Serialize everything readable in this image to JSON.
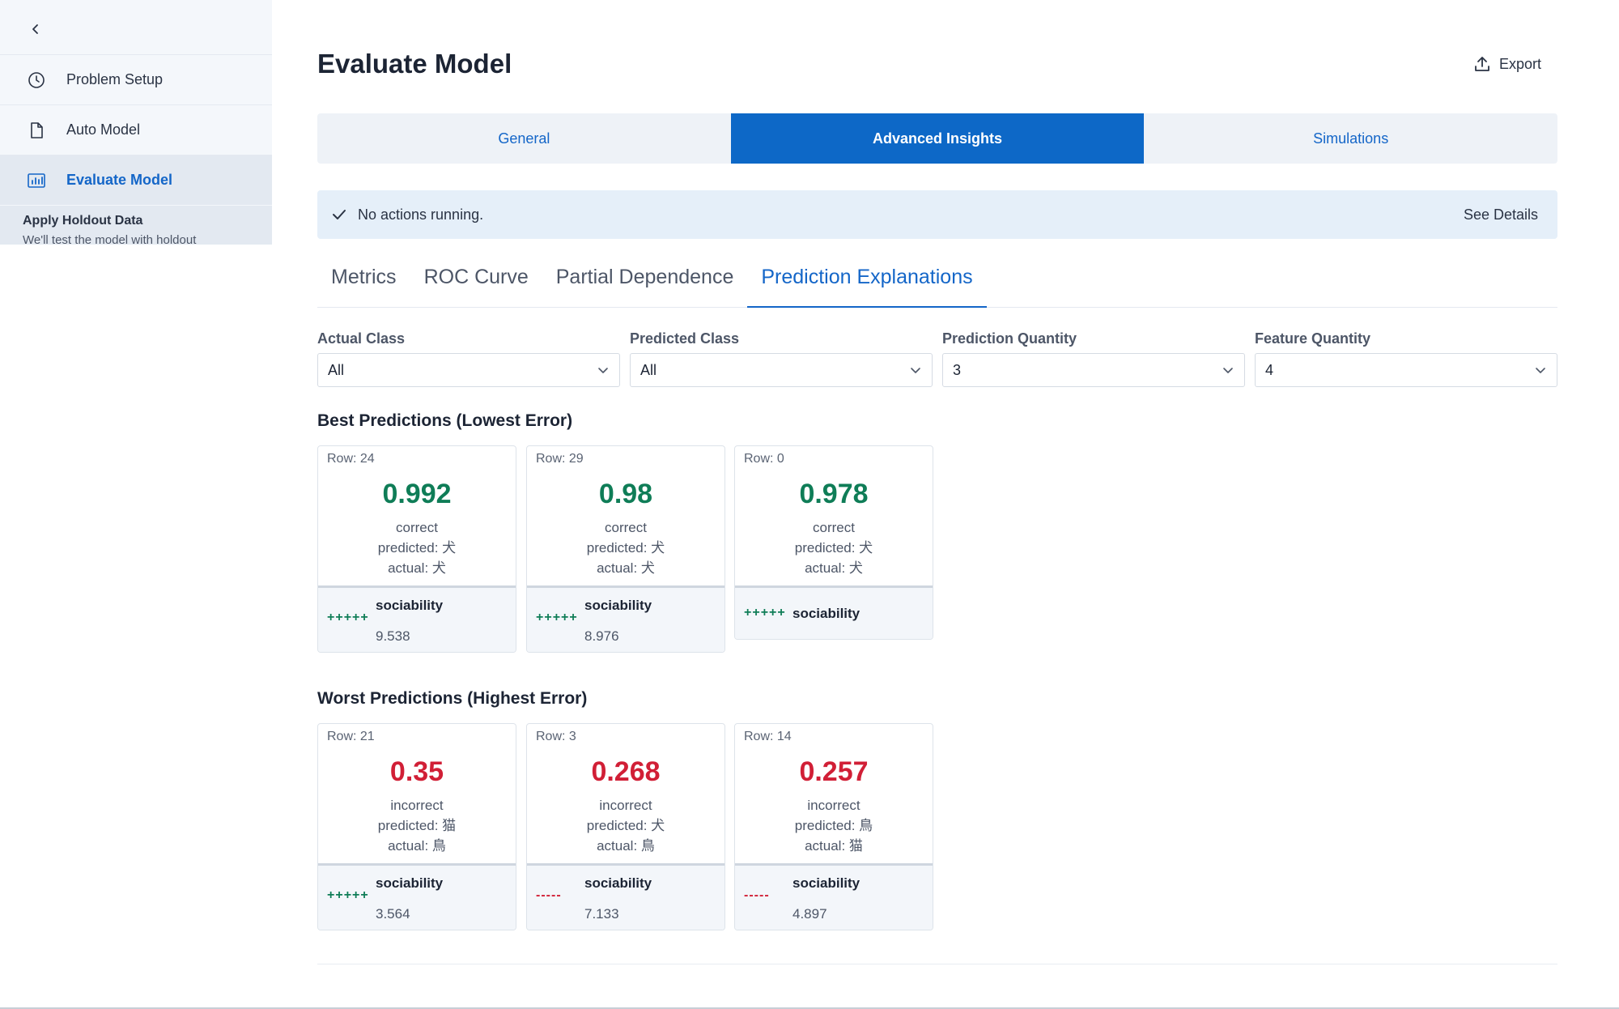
{
  "sidebar": {
    "items": [
      {
        "label": "Problem Setup",
        "icon": "clock-icon"
      },
      {
        "label": "Auto Model",
        "icon": "document-icon"
      },
      {
        "label": "Evaluate Model",
        "icon": "chart-icon"
      }
    ],
    "sub_title": "Apply Holdout Data",
    "sub_desc": "We'll test the model with holdout"
  },
  "header": {
    "title": "Evaluate Model",
    "export_label": "Export"
  },
  "segments": [
    "General",
    "Advanced Insights",
    "Simulations"
  ],
  "status": {
    "message": "No actions running.",
    "details_label": "See Details"
  },
  "subtabs": [
    "Metrics",
    "ROC Curve",
    "Partial Dependence",
    "Prediction Explanations"
  ],
  "filters": [
    {
      "label": "Actual Class",
      "value": "All"
    },
    {
      "label": "Predicted Class",
      "value": "All"
    },
    {
      "label": "Prediction Quantity",
      "value": "3"
    },
    {
      "label": "Feature Quantity",
      "value": "4"
    }
  ],
  "best": {
    "title": "Best Predictions (Lowest Error)",
    "cards": [
      {
        "row": "Row: 24",
        "value": "0.992",
        "status": "correct",
        "predicted": "predicted: 犬",
        "actual": "actual: 犬",
        "sign": "+++++",
        "feature": "sociability",
        "feature_value": "9.538"
      },
      {
        "row": "Row: 29",
        "value": "0.98",
        "status": "correct",
        "predicted": "predicted: 犬",
        "actual": "actual: 犬",
        "sign": "+++++",
        "feature": "sociability",
        "feature_value": "8.976"
      },
      {
        "row": "Row: 0",
        "value": "0.978",
        "status": "correct",
        "predicted": "predicted: 犬",
        "actual": "actual: 犬",
        "sign": "+++++",
        "feature": "sociability",
        "feature_value": ""
      }
    ]
  },
  "worst": {
    "title": "Worst Predictions (Highest Error)",
    "cards": [
      {
        "row": "Row: 21",
        "value": "0.35",
        "status": "incorrect",
        "predicted": "predicted: 猫",
        "actual": "actual: 鳥",
        "sign": "+++++",
        "feature": "sociability",
        "feature_value": "3.564"
      },
      {
        "row": "Row: 3",
        "value": "0.268",
        "status": "incorrect",
        "predicted": "predicted: 犬",
        "actual": "actual: 鳥",
        "sign": "-----",
        "feature": "sociability",
        "feature_value": "7.133"
      },
      {
        "row": "Row: 14",
        "value": "0.257",
        "status": "incorrect",
        "predicted": "predicted: 鳥",
        "actual": "actual: 猫",
        "sign": "-----",
        "feature": "sociability",
        "feature_value": "4.897"
      }
    ]
  },
  "colors": {
    "accent": "#0d68c7",
    "good": "#0f7d57",
    "bad": "#d11f36"
  }
}
